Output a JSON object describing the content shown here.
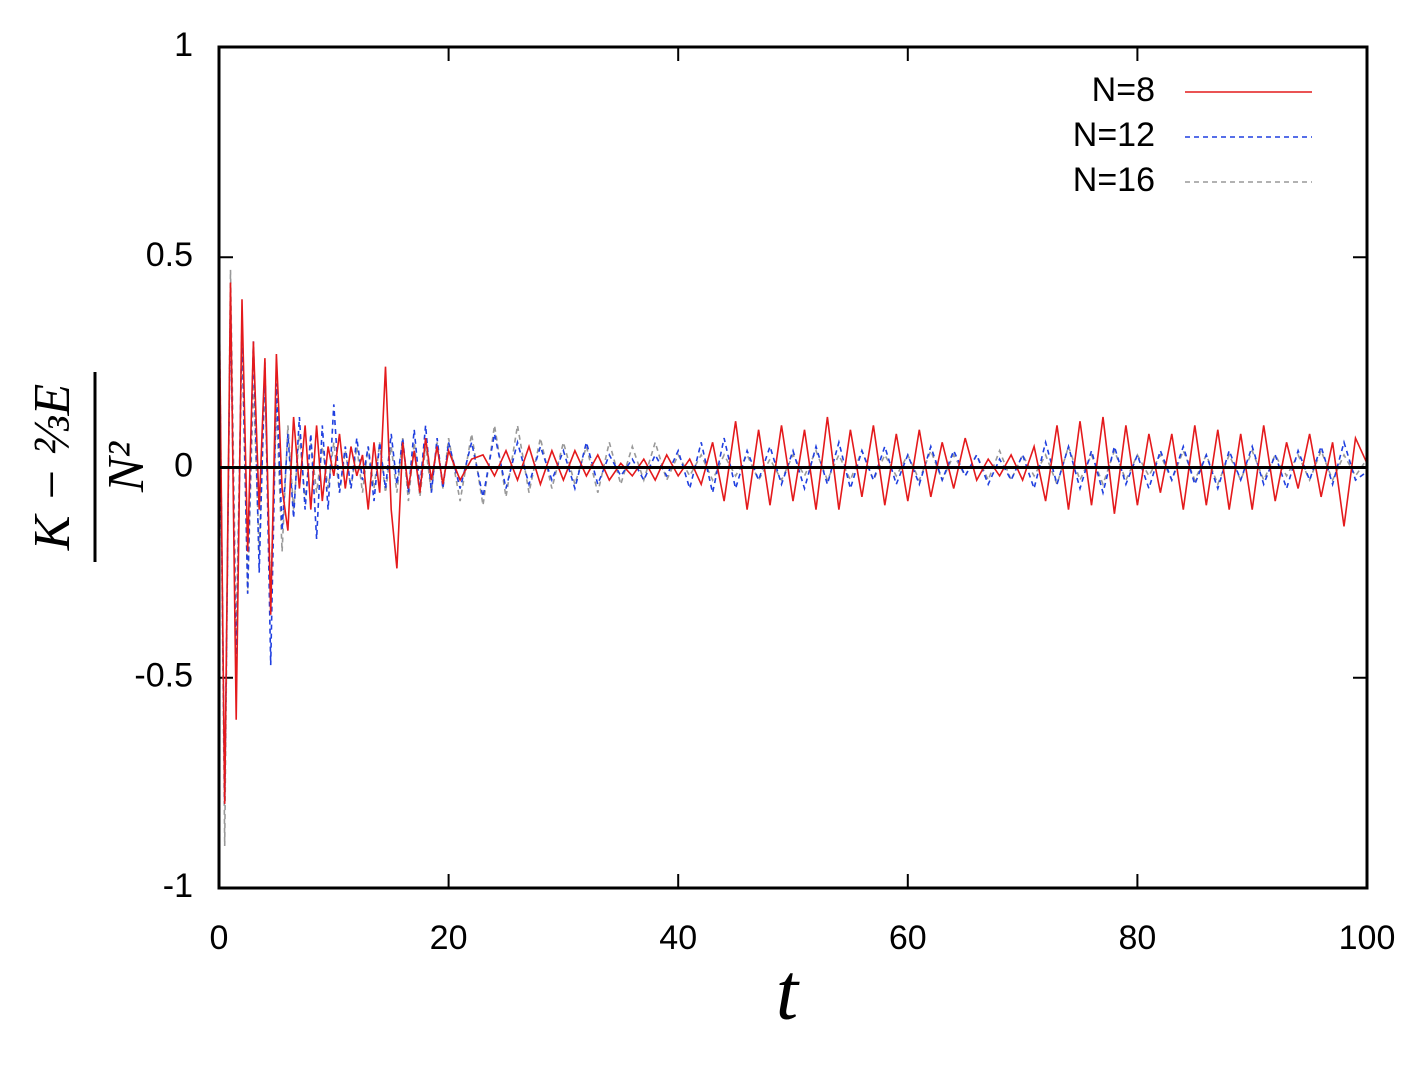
{
  "chart_data": {
    "type": "line",
    "x_label": "t",
    "y_label_numerator": "K − ⅔E",
    "y_label_denominator": "N²",
    "xlim": [
      0,
      100
    ],
    "xticks": [
      0,
      20,
      40,
      60,
      80,
      100
    ],
    "ylim": [
      -1,
      1
    ],
    "yticks": [
      -1,
      -0.5,
      0,
      0.5,
      1
    ],
    "zero_line": true,
    "legend": "top-right",
    "x": [
      0,
      0.5,
      1,
      1.5,
      2,
      2.5,
      3,
      3.5,
      4,
      4.5,
      5,
      5.5,
      6,
      6.5,
      7,
      7.5,
      8,
      8.5,
      9,
      9.5,
      10,
      10.5,
      11,
      11.5,
      12,
      12.5,
      13,
      13.5,
      14,
      14.5,
      15,
      15.5,
      16,
      16.5,
      17,
      17.5,
      18,
      18.5,
      19,
      19.5,
      20,
      21,
      22,
      23,
      24,
      25,
      26,
      27,
      28,
      29,
      30,
      31,
      32,
      33,
      34,
      35,
      36,
      37,
      38,
      39,
      40,
      41,
      42,
      43,
      44,
      45,
      46,
      47,
      48,
      49,
      50,
      51,
      52,
      53,
      54,
      55,
      56,
      57,
      58,
      59,
      60,
      61,
      62,
      63,
      64,
      65,
      66,
      67,
      68,
      69,
      70,
      71,
      72,
      73,
      74,
      75,
      76,
      77,
      78,
      79,
      80,
      81,
      82,
      83,
      84,
      85,
      86,
      87,
      88,
      89,
      90,
      91,
      92,
      93,
      94,
      95,
      96,
      97,
      98,
      99,
      100
    ],
    "series": [
      {
        "name": "N=8",
        "color": "#e41a1c",
        "dash": "solid",
        "values": [
          0.45,
          -0.8,
          0.44,
          -0.6,
          0.4,
          -0.2,
          0.3,
          -0.1,
          0.26,
          -0.35,
          0.27,
          -0.05,
          -0.15,
          0.12,
          -0.05,
          0.1,
          -0.1,
          0.1,
          -0.08,
          0.05,
          -0.02,
          0.08,
          -0.05,
          0.05,
          -0.02,
          0.03,
          -0.1,
          0.06,
          -0.06,
          0.24,
          -0.1,
          -0.24,
          0.06,
          -0.05,
          0.04,
          -0.06,
          0.07,
          -0.03,
          0.05,
          -0.04,
          0.04,
          -0.03,
          0.02,
          0.03,
          -0.02,
          0.04,
          -0.03,
          0.05,
          -0.04,
          0.04,
          -0.03,
          0.04,
          -0.02,
          0.03,
          -0.03,
          0.01,
          -0.02,
          0.02,
          -0.03,
          0.03,
          -0.02,
          0.02,
          -0.04,
          0.06,
          -0.08,
          0.11,
          -0.1,
          0.09,
          -0.09,
          0.1,
          -0.08,
          0.09,
          -0.1,
          0.12,
          -0.1,
          0.09,
          -0.07,
          0.1,
          -0.09,
          0.08,
          -0.08,
          0.09,
          -0.07,
          0.06,
          -0.05,
          0.07,
          -0.03,
          0.02,
          -0.02,
          0.03,
          -0.03,
          0.05,
          -0.08,
          0.1,
          -0.1,
          0.11,
          -0.09,
          0.12,
          -0.11,
          0.1,
          -0.09,
          0.08,
          -0.06,
          0.08,
          -0.1,
          0.1,
          -0.09,
          0.09,
          -0.1,
          0.08,
          -0.1,
          0.1,
          -0.08,
          0.06,
          -0.05,
          0.08,
          -0.07,
          0.06,
          -0.14,
          0.07,
          0.01
        ]
      },
      {
        "name": "N=12",
        "color": "#1f3fe0",
        "dash": "dashed",
        "values": [
          0.4,
          -0.8,
          0.4,
          -0.5,
          0.35,
          -0.3,
          0.3,
          -0.25,
          0.25,
          -0.47,
          0.2,
          -0.15,
          0.08,
          -0.12,
          0.12,
          -0.1,
          0.08,
          -0.17,
          0.1,
          -0.1,
          0.15,
          -0.06,
          0.05,
          -0.05,
          0.07,
          -0.03,
          0.05,
          -0.08,
          0.06,
          -0.05,
          0.08,
          -0.04,
          0.07,
          -0.06,
          0.09,
          -0.05,
          0.1,
          -0.06,
          0.07,
          -0.05,
          0.06,
          -0.05,
          0.06,
          -0.07,
          0.08,
          -0.05,
          0.06,
          -0.04,
          0.05,
          -0.03,
          0.04,
          -0.05,
          0.06,
          -0.04,
          0.03,
          -0.02,
          0.02,
          -0.03,
          0.03,
          -0.02,
          0.04,
          -0.05,
          0.06,
          -0.06,
          0.07,
          -0.05,
          0.04,
          -0.03,
          0.05,
          -0.04,
          0.04,
          -0.05,
          0.05,
          -0.04,
          0.06,
          -0.05,
          0.04,
          -0.03,
          0.05,
          -0.04,
          0.03,
          -0.04,
          0.05,
          -0.03,
          0.04,
          -0.02,
          0.03,
          -0.04,
          0.02,
          -0.03,
          0.03,
          -0.05,
          0.06,
          -0.04,
          0.05,
          -0.05,
          0.04,
          -0.06,
          0.05,
          -0.04,
          0.03,
          -0.05,
          0.04,
          -0.03,
          0.05,
          -0.04,
          0.03,
          -0.05,
          0.04,
          -0.03,
          0.05,
          -0.04,
          0.03,
          -0.05,
          0.04,
          -0.03,
          0.05,
          -0.04,
          0.06,
          -0.03,
          -0.01
        ]
      },
      {
        "name": "N=16",
        "color": "#999999",
        "dash": "dashed",
        "values": [
          0.47,
          -0.9,
          0.47,
          -0.4,
          0.3,
          -0.3,
          0.2,
          -0.2,
          0.2,
          -0.3,
          0.15,
          -0.2,
          0.1,
          -0.1,
          0.08,
          -0.08,
          0.06,
          -0.06,
          0.05,
          -0.05,
          0.06,
          -0.06,
          0.04,
          -0.05,
          0.05,
          -0.06,
          0.05,
          -0.05,
          0.06,
          -0.06,
          0.05,
          -0.06,
          0.07,
          -0.08,
          0.06,
          -0.07,
          0.05,
          -0.06,
          0.06,
          -0.05,
          0.07,
          -0.08,
          0.08,
          -0.09,
          0.1,
          -0.07,
          0.1,
          -0.06,
          0.07,
          -0.05,
          0.06,
          -0.04,
          0.05,
          -0.06,
          0.06,
          -0.04,
          0.05,
          -0.03,
          0.06,
          -0.03,
          0.03,
          -0.02,
          0.03,
          -0.03,
          0.03,
          -0.02,
          0.03,
          -0.03,
          0.02,
          -0.03,
          0.03,
          -0.02,
          0.04,
          -0.03,
          0.03,
          -0.03,
          0.04,
          -0.03,
          0.03,
          -0.02,
          0.03,
          -0.03,
          0.04,
          -0.03,
          0.03,
          -0.02,
          0.03,
          -0.03,
          0.04,
          -0.03,
          0.03,
          -0.02,
          0.03,
          -0.04,
          0.05,
          -0.03,
          0.03,
          -0.04,
          0.04,
          -0.03,
          0.03,
          -0.02,
          0.03,
          -0.03,
          0.04,
          -0.03,
          0.03,
          -0.04,
          0.03,
          -0.03,
          0.04,
          -0.03,
          0.03,
          -0.02,
          0.03,
          -0.03,
          0.04,
          -0.03,
          0.03,
          -0.02,
          0.02
        ]
      }
    ]
  }
}
